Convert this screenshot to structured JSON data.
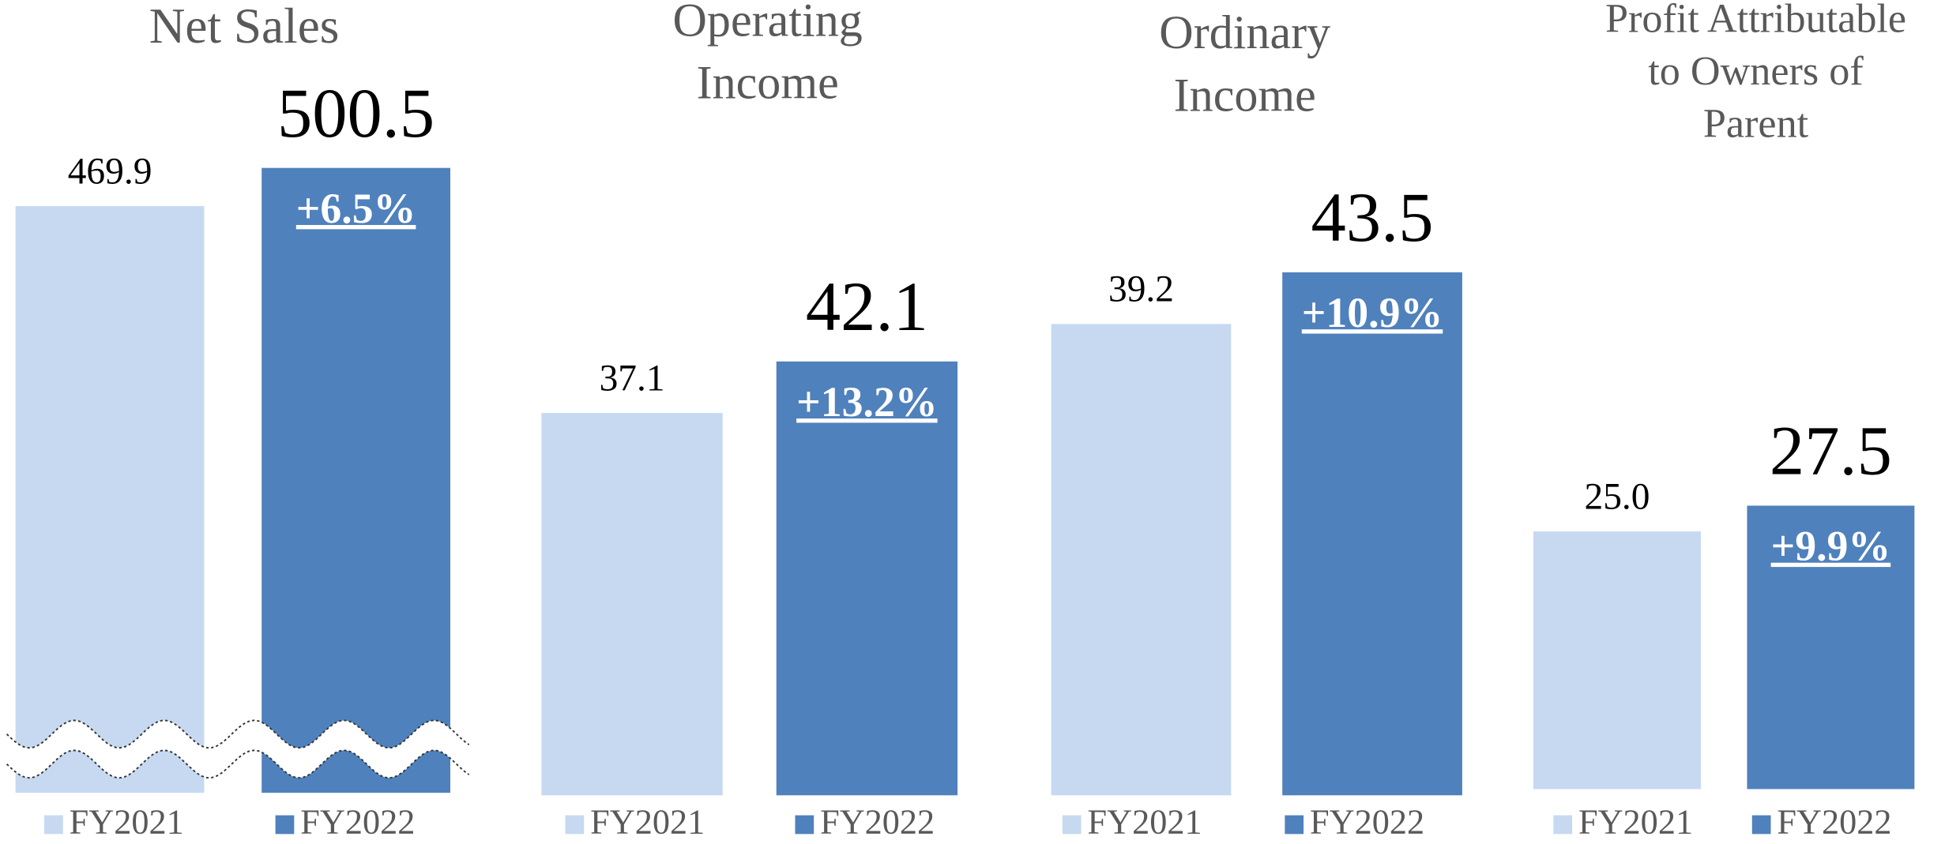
{
  "chart_data": [
    {
      "type": "bar",
      "title": [
        "Net Sales"
      ],
      "series": [
        {
          "name": "FY2021",
          "color": "#c6d9f1",
          "values": [
            469.9
          ]
        },
        {
          "name": "FY2022",
          "color": "#4f81bd",
          "values": [
            500.5
          ]
        }
      ],
      "change": "+6.5%",
      "ylim": [
        0,
        520
      ],
      "axis_break": true
    },
    {
      "type": "bar",
      "title": [
        "Operating",
        "Income"
      ],
      "series": [
        {
          "name": "FY2021",
          "color": "#c6d9f1",
          "values": [
            37.1
          ]
        },
        {
          "name": "FY2022",
          "color": "#4f81bd",
          "values": [
            42.1
          ]
        }
      ],
      "change": "+13.2%",
      "ylim": [
        0,
        63
      ],
      "axis_break": false
    },
    {
      "type": "bar",
      "title": [
        "Ordinary",
        "Income"
      ],
      "series": [
        {
          "name": "FY2021",
          "color": "#c6d9f1",
          "values": [
            39.2
          ]
        },
        {
          "name": "FY2022",
          "color": "#4f81bd",
          "values": [
            43.5
          ]
        }
      ],
      "change": "+10.9%",
      "ylim": [
        0,
        54
      ],
      "axis_break": false
    },
    {
      "type": "bar",
      "title": [
        "Profit Attributable",
        "to Owners of",
        "Parent"
      ],
      "series": [
        {
          "name": "FY2021",
          "color": "#c6d9f1",
          "values": [
            25
          ],
          "value_labels": [
            "25.0"
          ]
        },
        {
          "name": "FY2022",
          "color": "#4f81bd",
          "values": [
            27.5
          ]
        }
      ],
      "change": "+9.9%",
      "ylim": [
        0,
        63
      ],
      "axis_break": false
    }
  ]
}
